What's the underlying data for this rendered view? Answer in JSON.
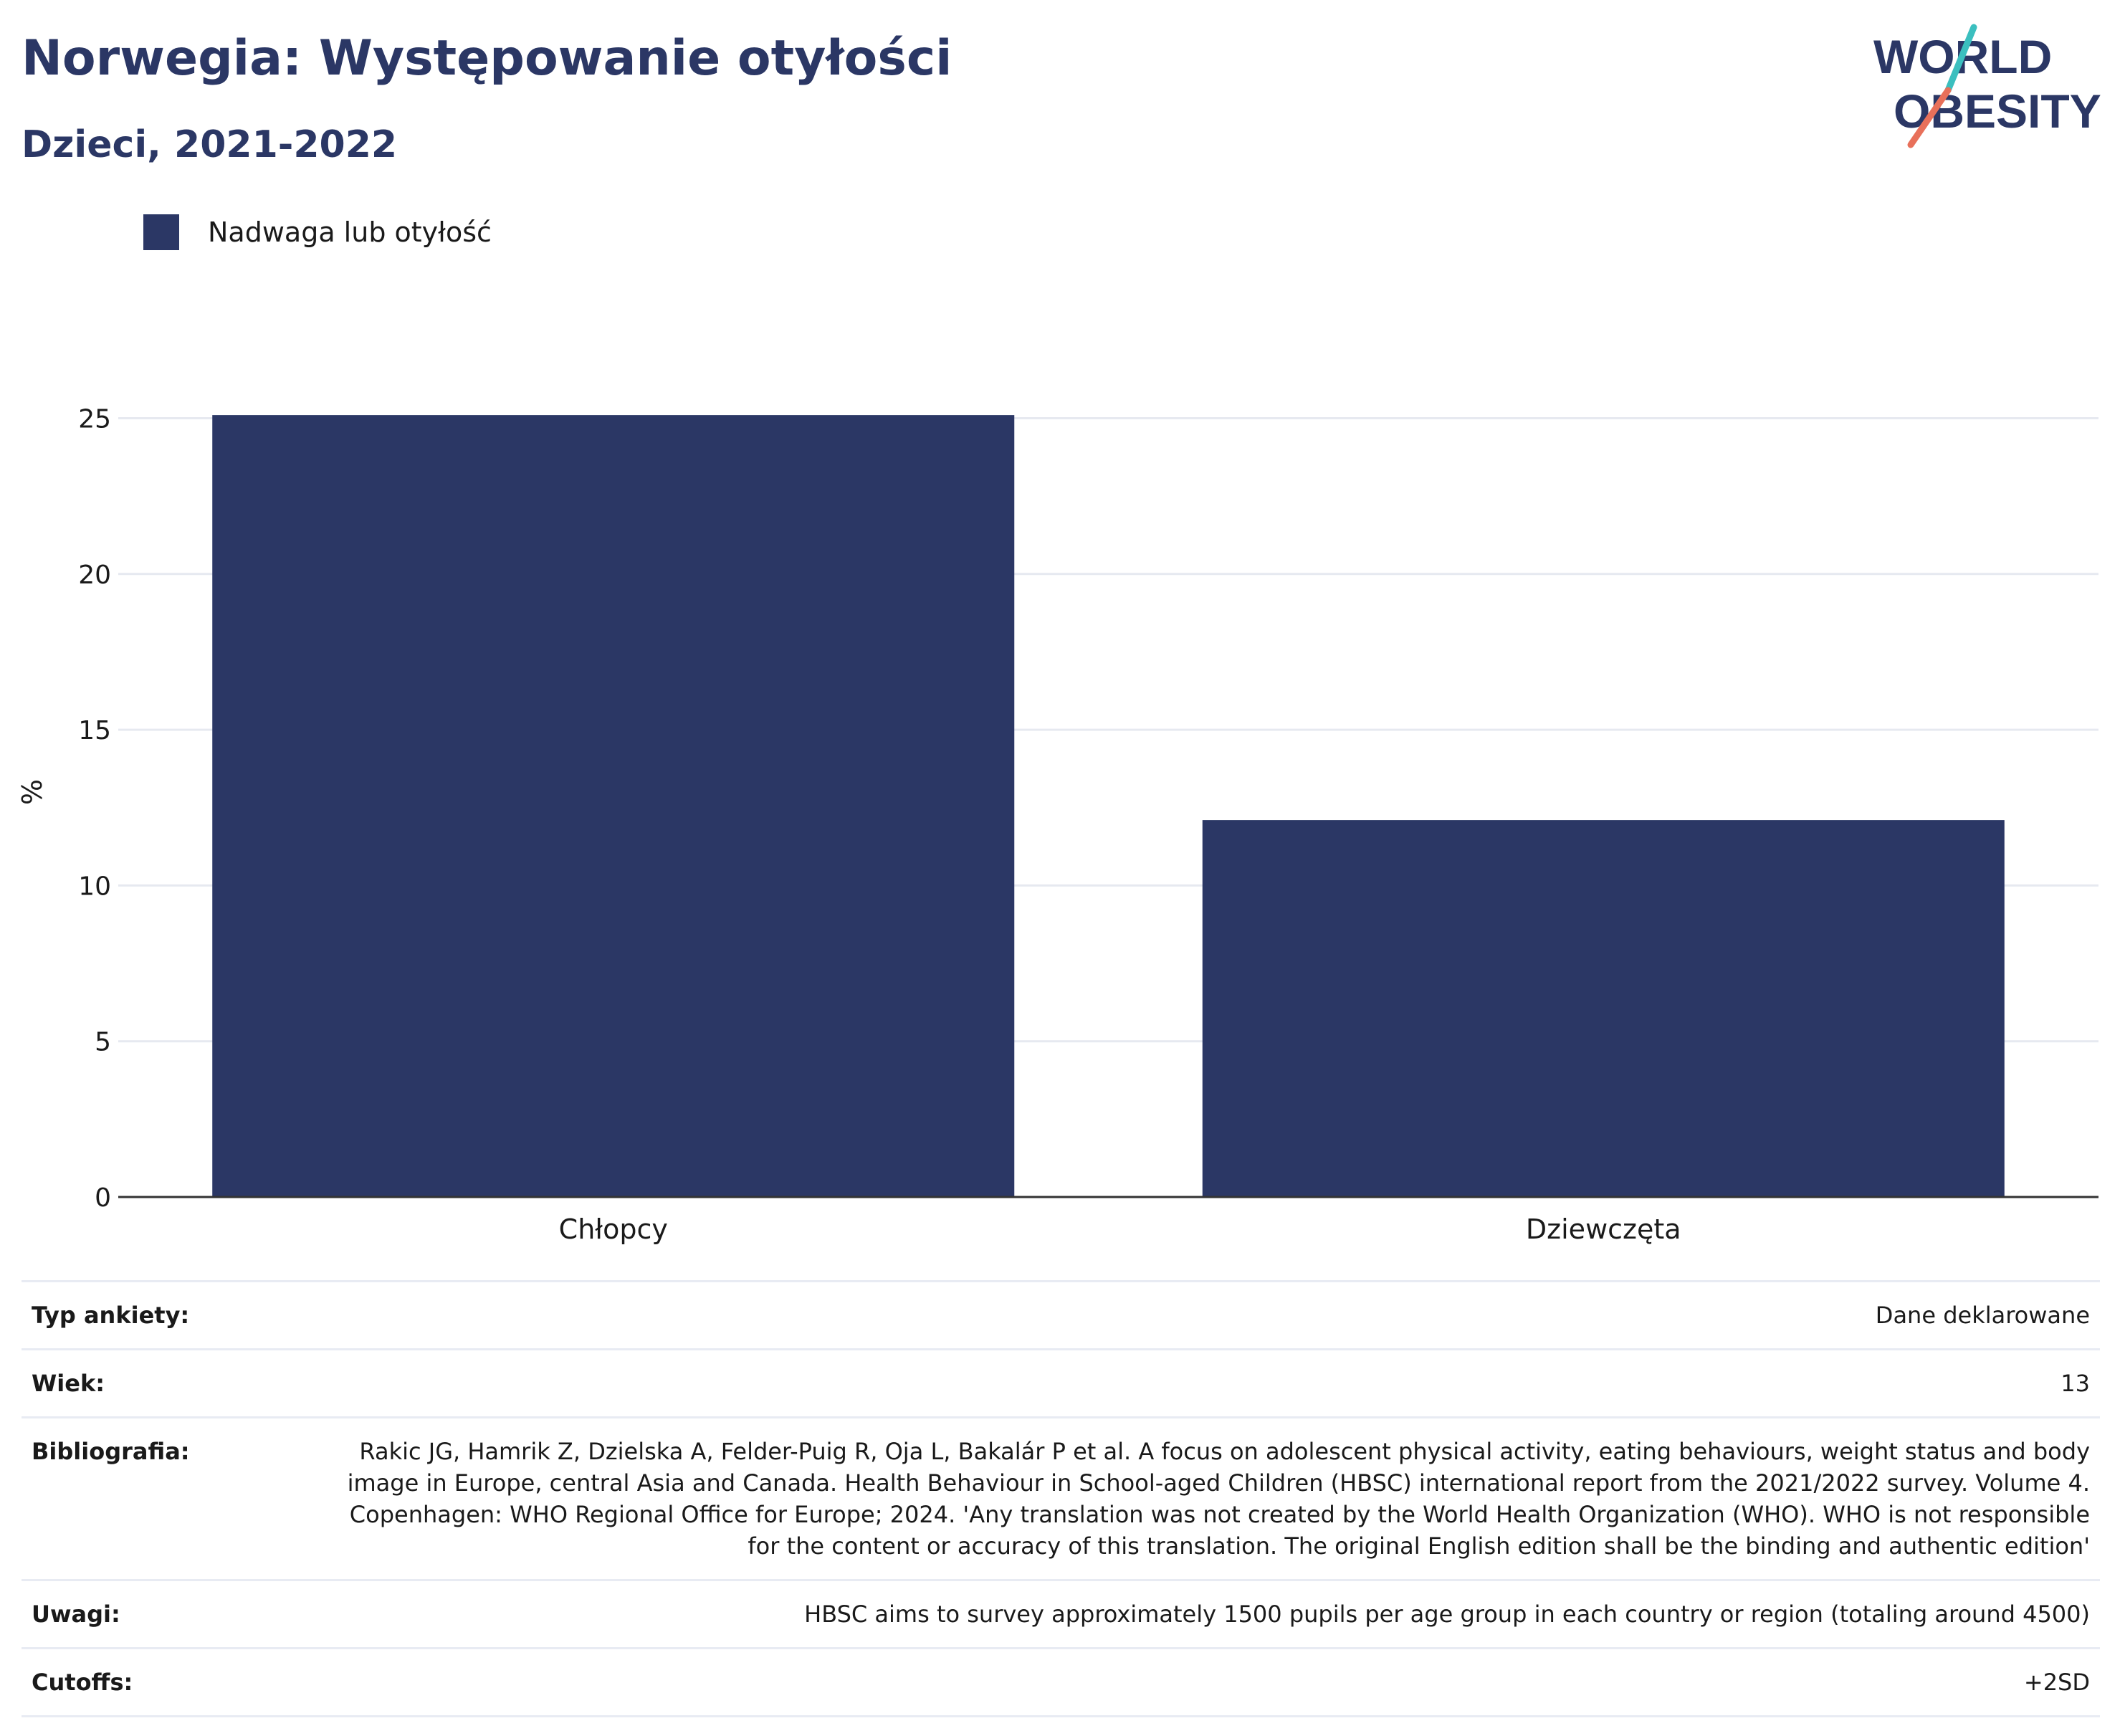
{
  "title": "Norwegia: Występowanie otyłości",
  "subtitle": "Dzieci, 2021-2022",
  "logo": {
    "line1": "WORLD",
    "line2": "OBESITY",
    "colors": {
      "text": "#2b3765",
      "slash_teal": "#3bbfbf",
      "slash_coral": "#e8705a"
    }
  },
  "colors": {
    "bar": "#2b3765",
    "grid": "#e6e9f0",
    "axis": "#333333"
  },
  "chart_data": {
    "type": "bar",
    "categories": [
      "Chłopcy",
      "Dziewczęta"
    ],
    "series": [
      {
        "name": "Nadwaga lub otyłość",
        "values": [
          25.1,
          12.1
        ]
      }
    ],
    "ylabel": "%",
    "xlabel": "",
    "ylim": [
      0,
      26
    ],
    "yticks": [
      0,
      5,
      10,
      15,
      20,
      25
    ],
    "grid": true,
    "legend": "top-left"
  },
  "meta": [
    {
      "key": "Typ ankiety:",
      "value": "Dane deklarowane"
    },
    {
      "key": "Wiek:",
      "value": "13"
    },
    {
      "key": "Bibliografia:",
      "value": "Rakic JG, Hamrik Z, Dzielska A, Felder-Puig R, Oja L, Bakalár P et al. A focus on adolescent physical activity, eating behaviours, weight status and body image in Europe, central Asia and Canada. Health Behaviour in School-aged Children (HBSC) international report from the 2021/2022 survey. Volume 4. Copenhagen: WHO Regional Office for Europe; 2024. 'Any translation was not created by the World Health Organization (WHO). WHO is not responsible for the content or accuracy of this translation. The original English edition shall be the binding and authentic edition'"
    },
    {
      "key": "Uwagi:",
      "value": "HBSC aims to survey approximately 1500 pupils per age group in each country or region (totaling around 4500)"
    },
    {
      "key": "Cutoffs:",
      "value": "+2SD"
    }
  ]
}
